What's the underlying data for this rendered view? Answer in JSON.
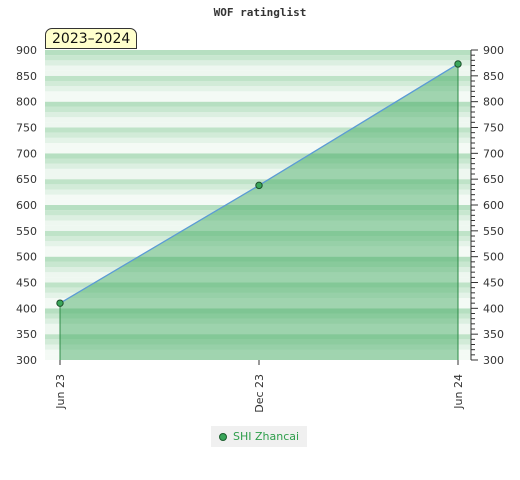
{
  "chart_data": {
    "type": "area",
    "title": "WOF ratinglist",
    "period_label": "2023–2024",
    "xlabel": "",
    "ylabel": "",
    "ylim": [
      300,
      900
    ],
    "yticks": [
      300,
      350,
      400,
      450,
      500,
      550,
      600,
      650,
      700,
      750,
      800,
      850,
      900
    ],
    "x_index_range": [
      0,
      12
    ],
    "x_ticks": [
      {
        "label": "Jun 23",
        "index": 0
      },
      {
        "label": "Dec 23",
        "index": 6
      },
      {
        "label": "Jun 24",
        "index": 12
      }
    ],
    "series": [
      {
        "name": "SHI Zhancai",
        "color": "#3aa65a",
        "line_color": "#5b9bd5",
        "points": [
          {
            "x": "Jun 23",
            "index": 0,
            "y": 410
          },
          {
            "x": "Dec 23",
            "index": 6,
            "y": 638
          },
          {
            "x": "Jun 24",
            "index": 12,
            "y": 873
          }
        ]
      }
    ],
    "legend": {
      "placement": "bottom-center"
    },
    "grid": true
  }
}
